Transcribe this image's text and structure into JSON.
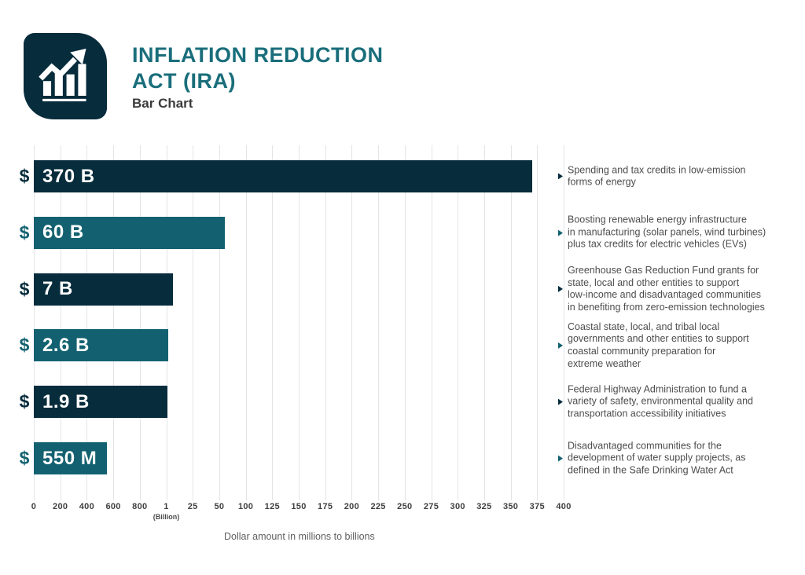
{
  "header": {
    "title_line1": "INFLATION REDUCTION",
    "title_line2": "ACT (IRA)",
    "subtitle": "Bar Chart",
    "logo_icon": "bar-chart-trend-icon"
  },
  "colors": {
    "navy": "#072c3c",
    "teal": "#136170",
    "title_teal": "#1a6e7b",
    "annotation_text": "#4d4d4d",
    "gridline": "#e1e5e8",
    "axis_label": "#3f3f3f"
  },
  "chart_data": {
    "type": "bar",
    "orientation": "horizontal",
    "title": "Inflation Reduction Act (IRA)",
    "caption": "Dollar amount in millions to billions",
    "axis": {
      "tick_labels": [
        "0",
        "200",
        "400",
        "600",
        "800",
        "1",
        "25",
        "50",
        "100",
        "125",
        "150",
        "175",
        "200",
        "225",
        "250",
        "275",
        "300",
        "325",
        "350",
        "375",
        "400"
      ],
      "tick_values_billions": [
        0,
        0.2,
        0.4,
        0.6,
        0.8,
        1,
        25,
        50,
        100,
        125,
        150,
        175,
        200,
        225,
        250,
        275,
        300,
        325,
        350,
        375,
        400
      ],
      "sublabel": "(Billion)",
      "sublabel_tick_index": 5,
      "grid": true
    },
    "bars": [
      {
        "currency": "$",
        "label": "370 B",
        "value_billions": 370,
        "color": "navy",
        "annotation_lines": [
          "Spending and tax credits in low-emission",
          "forms of energy"
        ]
      },
      {
        "currency": "$",
        "label": "60 B",
        "value_billions": 60,
        "color": "teal",
        "annotation_lines": [
          "Boosting renewable energy infrastructure",
          "in manufacturing (solar panels, wind turbines)",
          "plus tax credits for electric vehicles (EVs)"
        ]
      },
      {
        "currency": "$",
        "label": "7 B",
        "value_billions": 7,
        "color": "navy",
        "annotation_lines": [
          "Greenhouse Gas Reduction Fund grants for",
          "state, local and other entities to support",
          "low-income and disadvantaged communities",
          "in benefiting from zero-emission technologies"
        ]
      },
      {
        "currency": "$",
        "label": "2.6 B",
        "value_billions": 2.6,
        "color": "teal",
        "annotation_lines": [
          "Coastal state, local, and tribal local",
          "governments and other entities to support",
          "coastal community preparation for",
          "extreme weather"
        ]
      },
      {
        "currency": "$",
        "label": "1.9 B",
        "value_billions": 1.9,
        "color": "navy",
        "annotation_lines": [
          "Federal Highway Administration to fund a",
          "variety of safety, environmental quality and",
          "transportation accessibility initiatives"
        ]
      },
      {
        "currency": "$",
        "label": "550 M",
        "value_billions": 0.55,
        "color": "teal",
        "annotation_lines": [
          "Disadvantaged communities for the",
          "development of water supply projects, as",
          "defined in the Safe Drinking Water Act"
        ]
      }
    ]
  }
}
